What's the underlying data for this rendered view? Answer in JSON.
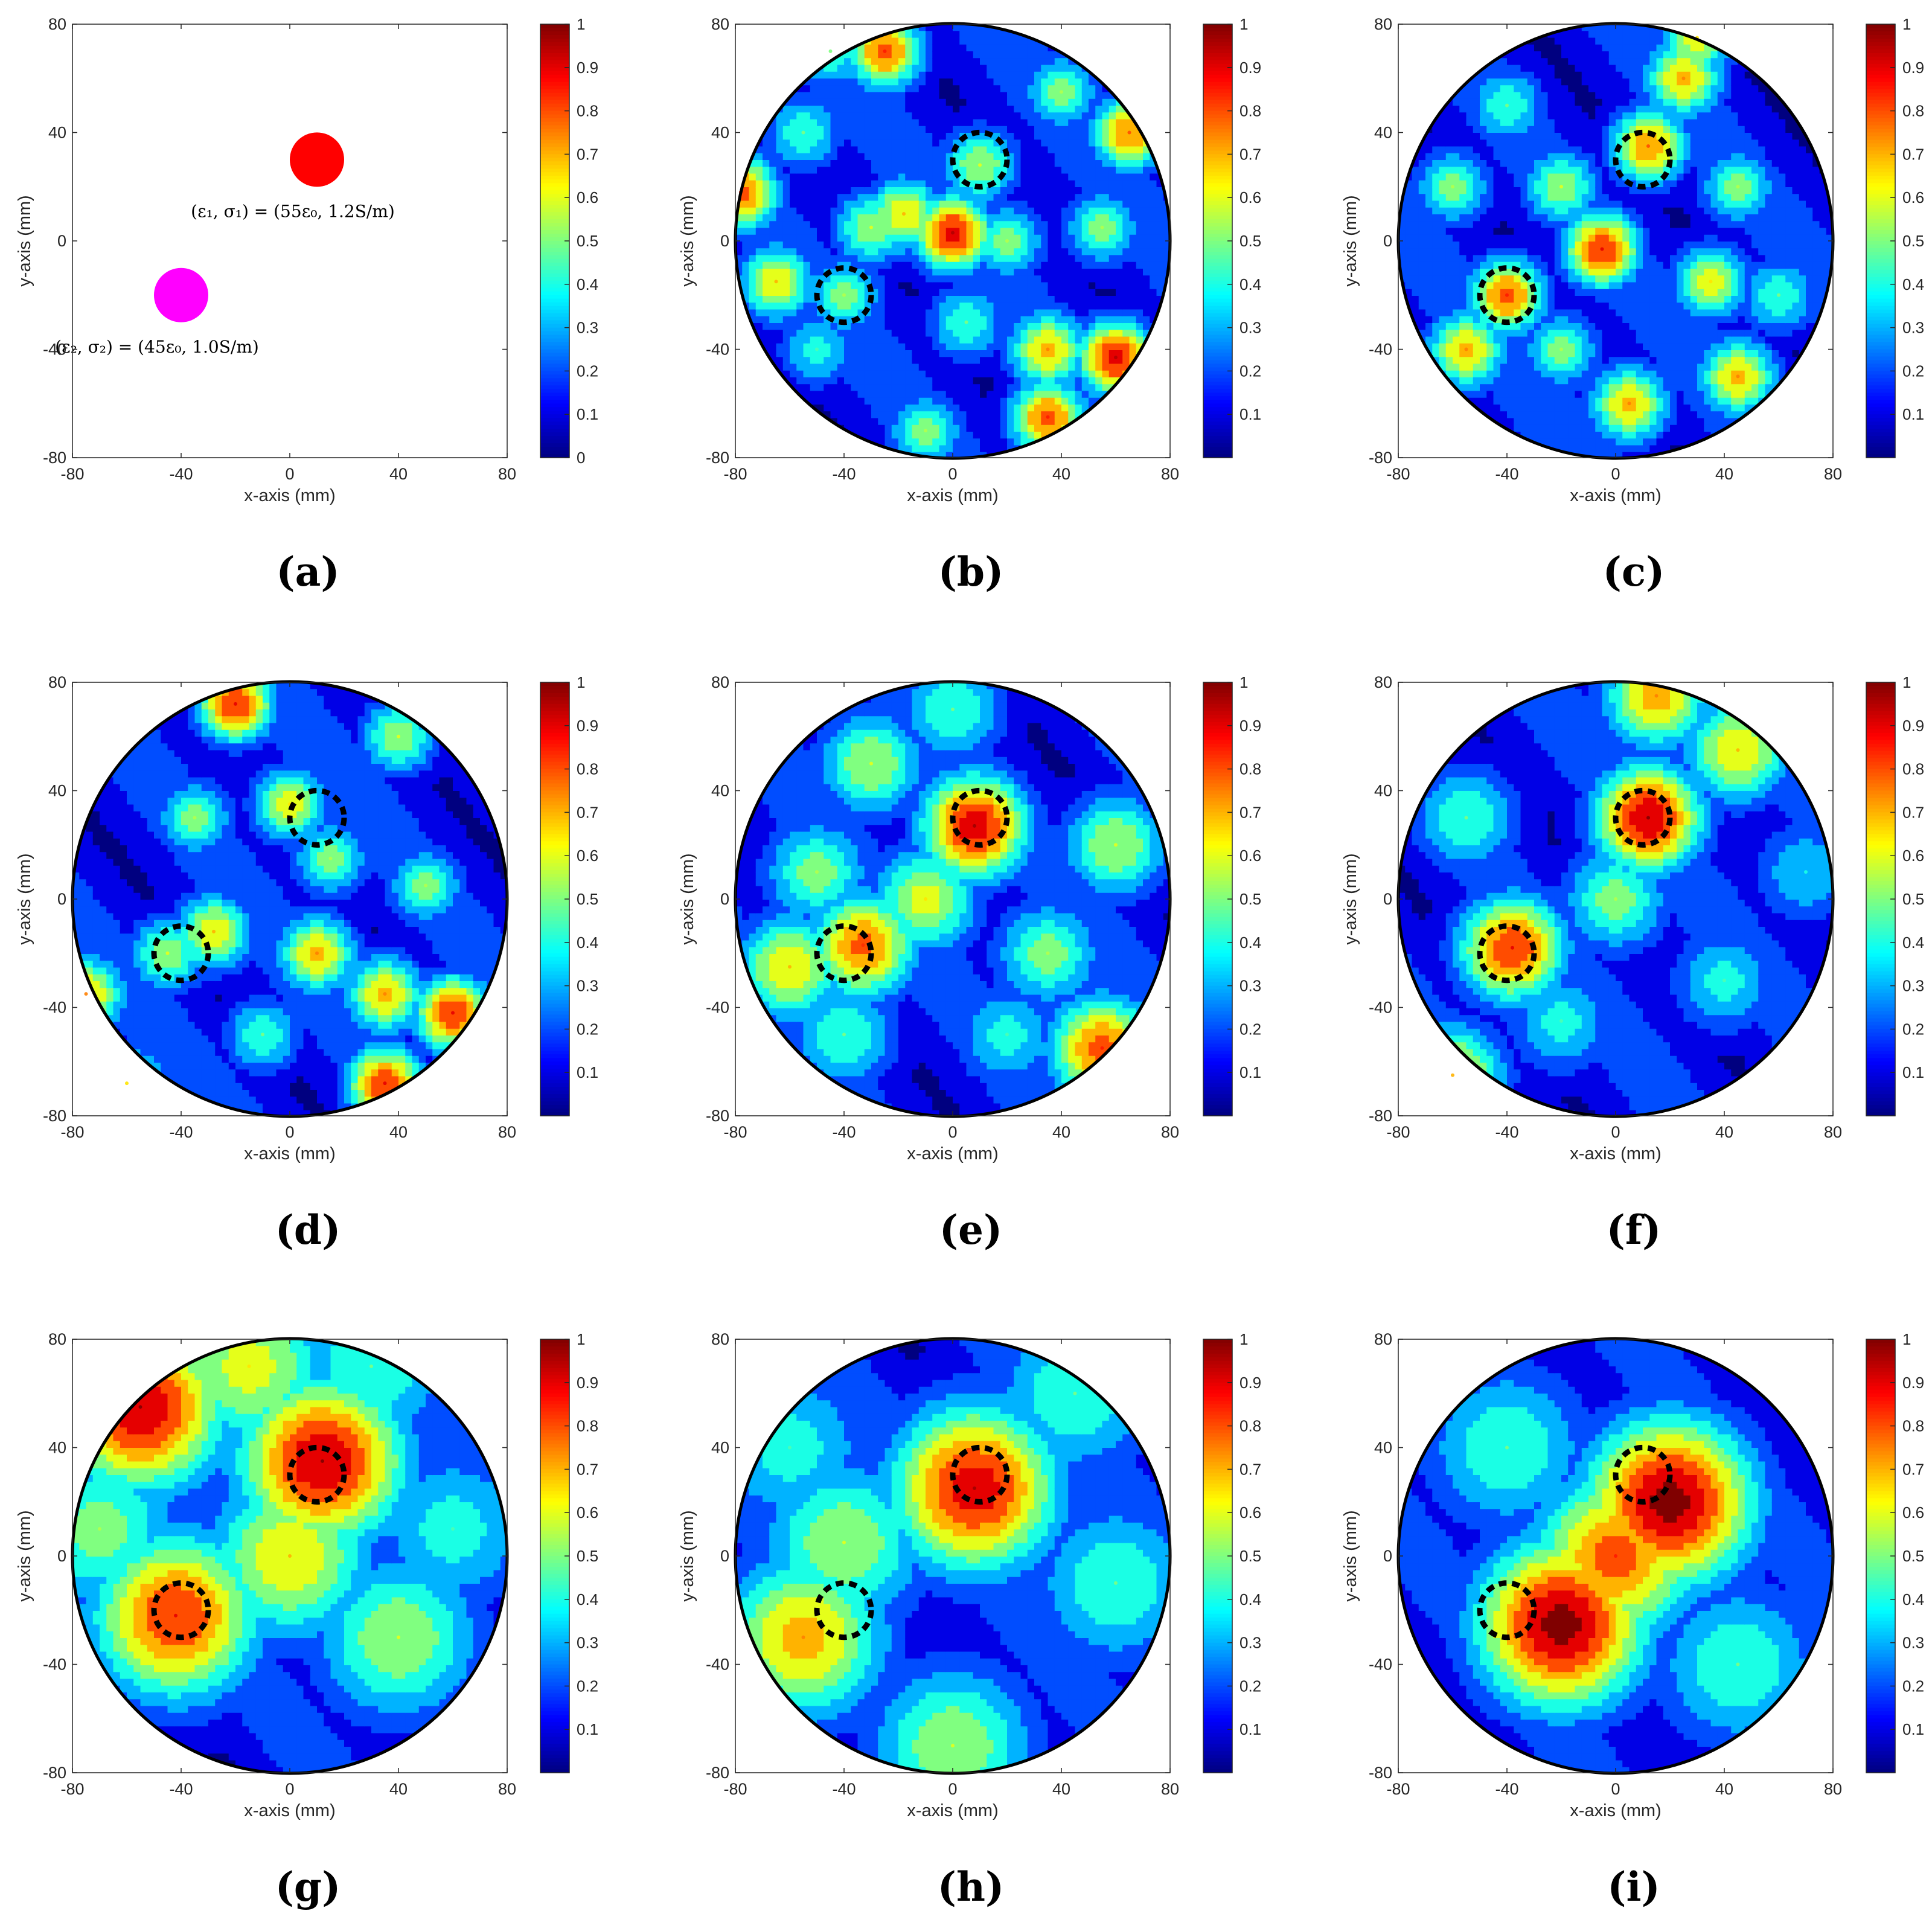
{
  "figure": {
    "panels": [
      {
        "caption": "(a)"
      },
      {
        "caption": "(b)"
      },
      {
        "caption": "(c)"
      },
      {
        "caption": "(d)"
      },
      {
        "caption": "(e)"
      },
      {
        "caption": "(f)"
      },
      {
        "caption": "(g)"
      },
      {
        "caption": "(h)"
      },
      {
        "caption": "(i)"
      }
    ]
  },
  "colors": {
    "scatterer1": "#ff0000",
    "scatterer2": "#ff00ff",
    "colormap": "jet",
    "marker_outline": "#000000"
  },
  "chart_data": [
    {
      "panel": "(a)",
      "type": "scatter",
      "xlabel": "x-axis (mm)",
      "ylabel": "y-axis (mm)",
      "xlim": [
        -80,
        80
      ],
      "ylim": [
        -80,
        80
      ],
      "xticks": [
        "-80",
        "-40",
        "0",
        "40",
        "80"
      ],
      "yticks": [
        "80",
        "40",
        "0",
        "-40",
        "-80"
      ],
      "colorbar": {
        "ticks": [
          "1",
          "0.9",
          "0.8",
          "0.7",
          "0.6",
          "0.5",
          "0.4",
          "0.3",
          "0.2",
          "0.1",
          "0"
        ],
        "range": [
          0,
          1
        ]
      },
      "points": [
        {
          "x": 10,
          "y": 30,
          "radius": 10,
          "color": "#ff0000",
          "label": "(ε₁, σ₁) = (55ε₀, 1.2S/m)"
        },
        {
          "x": -40,
          "y": -20,
          "radius": 10,
          "color": "#ff00ff",
          "label": "(ε₂, σ₂) = (45ε₀, 1.0S/m)"
        }
      ]
    },
    {
      "panel": "(b)",
      "type": "heatmap",
      "xlabel": "x-axis (mm)",
      "ylabel": "y-axis (mm)",
      "xlim": [
        -80,
        80
      ],
      "ylim": [
        -80,
        80
      ],
      "domain": "circle r=80",
      "xticks": [
        "-80",
        "-40",
        "0",
        "40",
        "80"
      ],
      "yticks": [
        "80",
        "40",
        "0",
        "-40",
        "-80"
      ],
      "colorbar": {
        "ticks": [
          "1",
          "0.9",
          "0.8",
          "0.7",
          "0.6",
          "0.5",
          "0.4",
          "0.3",
          "0.2",
          "0.1"
        ],
        "range": [
          0,
          1
        ]
      },
      "true_locations": [
        {
          "x": 10,
          "y": 30
        },
        {
          "x": -40,
          "y": -20
        }
      ],
      "peaks": [
        {
          "x": 0,
          "y": 3,
          "v": 0.9
        },
        {
          "x": -25,
          "y": 70,
          "v": 0.8
        },
        {
          "x": -78,
          "y": 18,
          "v": 0.8
        },
        {
          "x": 65,
          "y": 40,
          "v": 0.75
        },
        {
          "x": 60,
          "y": -43,
          "v": 0.9
        },
        {
          "x": 35,
          "y": -65,
          "v": 0.8
        },
        {
          "x": 35,
          "y": -40,
          "v": 0.7
        },
        {
          "x": -18,
          "y": 10,
          "v": 0.65
        },
        {
          "x": -40,
          "y": -20,
          "v": 0.5
        },
        {
          "x": 10,
          "y": 28,
          "v": 0.55
        },
        {
          "x": -65,
          "y": -15,
          "v": 0.65
        },
        {
          "x": -30,
          "y": 5,
          "v": 0.55
        },
        {
          "x": 20,
          "y": 0,
          "v": 0.5
        },
        {
          "x": 55,
          "y": 5,
          "v": 0.5
        },
        {
          "x": -55,
          "y": 40,
          "v": 0.45
        },
        {
          "x": 5,
          "y": -30,
          "v": 0.45
        },
        {
          "x": -10,
          "y": -70,
          "v": 0.5
        },
        {
          "x": -45,
          "y": 70,
          "v": 0.45
        },
        {
          "x": 40,
          "y": 55,
          "v": 0.5
        },
        {
          "x": -50,
          "y": -40,
          "v": 0.4
        }
      ]
    },
    {
      "panel": "(c)",
      "type": "heatmap",
      "xlabel": "x-axis (mm)",
      "ylabel": "y-axis (mm)",
      "xlim": [
        -80,
        80
      ],
      "ylim": [
        -80,
        80
      ],
      "domain": "circle r=80",
      "xticks": [
        "-80",
        "-40",
        "0",
        "40",
        "80"
      ],
      "yticks": [
        "80",
        "40",
        "0",
        "-40",
        "-80"
      ],
      "colorbar": {
        "ticks": [
          "1",
          "0.9",
          "0.8",
          "0.7",
          "0.6",
          "0.5",
          "0.4",
          "0.3",
          "0.2",
          "0.1"
        ],
        "range": [
          0,
          1
        ]
      },
      "true_locations": [
        {
          "x": 10,
          "y": 30
        },
        {
          "x": -40,
          "y": -20
        }
      ],
      "peaks": [
        {
          "x": -40,
          "y": -20,
          "v": 0.8
        },
        {
          "x": 12,
          "y": 35,
          "v": 0.75
        },
        {
          "x": -5,
          "y": -3,
          "v": 0.85
        },
        {
          "x": 25,
          "y": 60,
          "v": 0.7
        },
        {
          "x": -55,
          "y": -40,
          "v": 0.7
        },
        {
          "x": 5,
          "y": -60,
          "v": 0.7
        },
        {
          "x": 45,
          "y": -50,
          "v": 0.7
        },
        {
          "x": 35,
          "y": -15,
          "v": 0.6
        },
        {
          "x": -20,
          "y": 20,
          "v": 0.55
        },
        {
          "x": 45,
          "y": 20,
          "v": 0.5
        },
        {
          "x": -60,
          "y": 20,
          "v": 0.5
        },
        {
          "x": -20,
          "y": -40,
          "v": 0.5
        },
        {
          "x": 30,
          "y": 75,
          "v": 0.6
        },
        {
          "x": 60,
          "y": -20,
          "v": 0.45
        },
        {
          "x": -40,
          "y": 50,
          "v": 0.45
        }
      ]
    },
    {
      "panel": "(d)",
      "type": "heatmap",
      "xlabel": "x-axis (mm)",
      "ylabel": "y-axis (mm)",
      "xlim": [
        -80,
        80
      ],
      "ylim": [
        -80,
        80
      ],
      "domain": "circle r=80",
      "xticks": [
        "-80",
        "-40",
        "0",
        "40",
        "80"
      ],
      "yticks": [
        "80",
        "40",
        "0",
        "-40",
        "-80"
      ],
      "colorbar": {
        "ticks": [
          "1",
          "0.9",
          "0.8",
          "0.7",
          "0.6",
          "0.5",
          "0.4",
          "0.3",
          "0.2",
          "0.1"
        ],
        "range": [
          0,
          1
        ]
      },
      "true_locations": [
        {
          "x": 10,
          "y": 30
        },
        {
          "x": -40,
          "y": -20
        }
      ],
      "peaks": [
        {
          "x": -20,
          "y": 72,
          "v": 0.85
        },
        {
          "x": 60,
          "y": -42,
          "v": 0.85
        },
        {
          "x": 35,
          "y": -68,
          "v": 0.85
        },
        {
          "x": 35,
          "y": -35,
          "v": 0.7
        },
        {
          "x": 10,
          "y": -20,
          "v": 0.7
        },
        {
          "x": 0,
          "y": 35,
          "v": 0.6
        },
        {
          "x": -45,
          "y": -20,
          "v": 0.55
        },
        {
          "x": -75,
          "y": -35,
          "v": 0.7
        },
        {
          "x": -28,
          "y": -12,
          "v": 0.65
        },
        {
          "x": 40,
          "y": 60,
          "v": 0.55
        },
        {
          "x": -60,
          "y": -68,
          "v": 0.6
        },
        {
          "x": 50,
          "y": 5,
          "v": 0.5
        },
        {
          "x": -35,
          "y": 30,
          "v": 0.5
        },
        {
          "x": -10,
          "y": -50,
          "v": 0.45
        },
        {
          "x": 15,
          "y": 15,
          "v": 0.5
        }
      ]
    },
    {
      "panel": "(e)",
      "type": "heatmap",
      "xlabel": "x-axis (mm)",
      "ylabel": "y-axis (mm)",
      "xlim": [
        -80,
        80
      ],
      "ylim": [
        -80,
        80
      ],
      "domain": "circle r=80",
      "xticks": [
        "-80",
        "-40",
        "0",
        "40",
        "80"
      ],
      "yticks": [
        "80",
        "40",
        "0",
        "-40",
        "-80"
      ],
      "colorbar": {
        "ticks": [
          "1",
          "0.9",
          "0.8",
          "0.7",
          "0.6",
          "0.5",
          "0.4",
          "0.3",
          "0.2",
          "0.1"
        ],
        "range": [
          0,
          1
        ]
      },
      "true_locations": [
        {
          "x": 10,
          "y": 30
        },
        {
          "x": -40,
          "y": -20
        }
      ],
      "peaks": [
        {
          "x": 8,
          "y": 27,
          "v": 0.92
        },
        {
          "x": -33,
          "y": -17,
          "v": 0.78
        },
        {
          "x": 55,
          "y": -55,
          "v": 0.8
        },
        {
          "x": -60,
          "y": -25,
          "v": 0.65
        },
        {
          "x": -10,
          "y": 0,
          "v": 0.6
        },
        {
          "x": -30,
          "y": 50,
          "v": 0.55
        },
        {
          "x": 35,
          "y": -20,
          "v": 0.5
        },
        {
          "x": -50,
          "y": 10,
          "v": 0.5
        },
        {
          "x": 60,
          "y": 20,
          "v": 0.55
        },
        {
          "x": 0,
          "y": 70,
          "v": 0.45
        },
        {
          "x": -40,
          "y": -50,
          "v": 0.45
        },
        {
          "x": 20,
          "y": -50,
          "v": 0.4
        }
      ]
    },
    {
      "panel": "(f)",
      "type": "heatmap",
      "xlabel": "x-axis (mm)",
      "ylabel": "y-axis (mm)",
      "xlim": [
        -80,
        80
      ],
      "ylim": [
        -80,
        80
      ],
      "domain": "circle r=80",
      "xticks": [
        "-80",
        "-40",
        "0",
        "40",
        "80"
      ],
      "yticks": [
        "80",
        "40",
        "0",
        "-40",
        "-80"
      ],
      "colorbar": {
        "ticks": [
          "1",
          "0.9",
          "0.8",
          "0.7",
          "0.6",
          "0.5",
          "0.4",
          "0.3",
          "0.2",
          "0.1"
        ],
        "range": [
          0,
          1
        ]
      },
      "true_locations": [
        {
          "x": 10,
          "y": 30
        },
        {
          "x": -40,
          "y": -20
        }
      ],
      "peaks": [
        {
          "x": 12,
          "y": 30,
          "v": 0.95
        },
        {
          "x": -38,
          "y": -18,
          "v": 0.85
        },
        {
          "x": 15,
          "y": 75,
          "v": 0.7
        },
        {
          "x": 45,
          "y": 55,
          "v": 0.65
        },
        {
          "x": -60,
          "y": -65,
          "v": 0.65
        },
        {
          "x": 0,
          "y": 0,
          "v": 0.5
        },
        {
          "x": -55,
          "y": 30,
          "v": 0.45
        },
        {
          "x": 40,
          "y": -30,
          "v": 0.4
        },
        {
          "x": -20,
          "y": -45,
          "v": 0.4
        },
        {
          "x": 70,
          "y": 10,
          "v": 0.35
        }
      ]
    },
    {
      "panel": "(g)",
      "type": "heatmap",
      "xlabel": "x-axis (mm)",
      "ylabel": "y-axis (mm)",
      "xlim": [
        -80,
        80
      ],
      "ylim": [
        -80,
        80
      ],
      "domain": "circle r=80",
      "xticks": [
        "-80",
        "-40",
        "0",
        "40",
        "80"
      ],
      "yticks": [
        "80",
        "40",
        "0",
        "-40",
        "-80"
      ],
      "colorbar": {
        "ticks": [
          "1",
          "0.9",
          "0.8",
          "0.7",
          "0.6",
          "0.5",
          "0.4",
          "0.3",
          "0.2",
          "0.1"
        ],
        "range": [
          0,
          1
        ]
      },
      "true_locations": [
        {
          "x": 10,
          "y": 30
        },
        {
          "x": -40,
          "y": -20
        }
      ],
      "peaks": [
        {
          "x": -55,
          "y": 55,
          "v": 0.95
        },
        {
          "x": 12,
          "y": 35,
          "v": 0.95
        },
        {
          "x": -42,
          "y": -22,
          "v": 0.85
        },
        {
          "x": 0,
          "y": 0,
          "v": 0.65
        },
        {
          "x": 40,
          "y": -30,
          "v": 0.55
        },
        {
          "x": -15,
          "y": 70,
          "v": 0.6
        },
        {
          "x": -70,
          "y": 10,
          "v": 0.5
        },
        {
          "x": 30,
          "y": 70,
          "v": 0.45
        },
        {
          "x": 60,
          "y": 10,
          "v": 0.4
        }
      ]
    },
    {
      "panel": "(h)",
      "type": "heatmap",
      "xlabel": "x-axis (mm)",
      "ylabel": "y-axis (mm)",
      "xlim": [
        -80,
        80
      ],
      "ylim": [
        -80,
        80
      ],
      "domain": "circle r=80",
      "xticks": [
        "-80",
        "-40",
        "0",
        "40",
        "80"
      ],
      "yticks": [
        "80",
        "40",
        "0",
        "-40",
        "-80"
      ],
      "colorbar": {
        "ticks": [
          "1",
          "0.9",
          "0.8",
          "0.7",
          "0.6",
          "0.5",
          "0.4",
          "0.3",
          "0.2",
          "0.1"
        ],
        "range": [
          0,
          1
        ]
      },
      "true_locations": [
        {
          "x": 10,
          "y": 30
        },
        {
          "x": -40,
          "y": -20
        }
      ],
      "peaks": [
        {
          "x": 8,
          "y": 25,
          "v": 0.92
        },
        {
          "x": -55,
          "y": -30,
          "v": 0.7
        },
        {
          "x": 0,
          "y": -70,
          "v": 0.55
        },
        {
          "x": -40,
          "y": 5,
          "v": 0.55
        },
        {
          "x": 60,
          "y": -10,
          "v": 0.45
        },
        {
          "x": 45,
          "y": 60,
          "v": 0.45
        },
        {
          "x": -60,
          "y": 40,
          "v": 0.4
        }
      ]
    },
    {
      "panel": "(i)",
      "type": "heatmap",
      "xlabel": "x-axis (mm)",
      "ylabel": "y-axis (mm)",
      "xlim": [
        -80,
        80
      ],
      "ylim": [
        -80,
        80
      ],
      "domain": "circle r=80",
      "xticks": [
        "-80",
        "-40",
        "0",
        "40",
        "80"
      ],
      "yticks": [
        "80",
        "40",
        "0",
        "-40",
        "-80"
      ],
      "colorbar": {
        "ticks": [
          "1",
          "0.9",
          "0.8",
          "0.7",
          "0.6",
          "0.5",
          "0.4",
          "0.3",
          "0.2",
          "0.1"
        ],
        "range": [
          0,
          1
        ]
      },
      "true_locations": [
        {
          "x": 10,
          "y": 30
        },
        {
          "x": -40,
          "y": -20
        }
      ],
      "peaks": [
        {
          "x": 20,
          "y": 20,
          "v": 1.0
        },
        {
          "x": -20,
          "y": -25,
          "v": 1.0
        },
        {
          "x": 0,
          "y": 0,
          "v": 0.8
        },
        {
          "x": -40,
          "y": 40,
          "v": 0.45
        },
        {
          "x": 45,
          "y": -40,
          "v": 0.45
        }
      ]
    }
  ]
}
